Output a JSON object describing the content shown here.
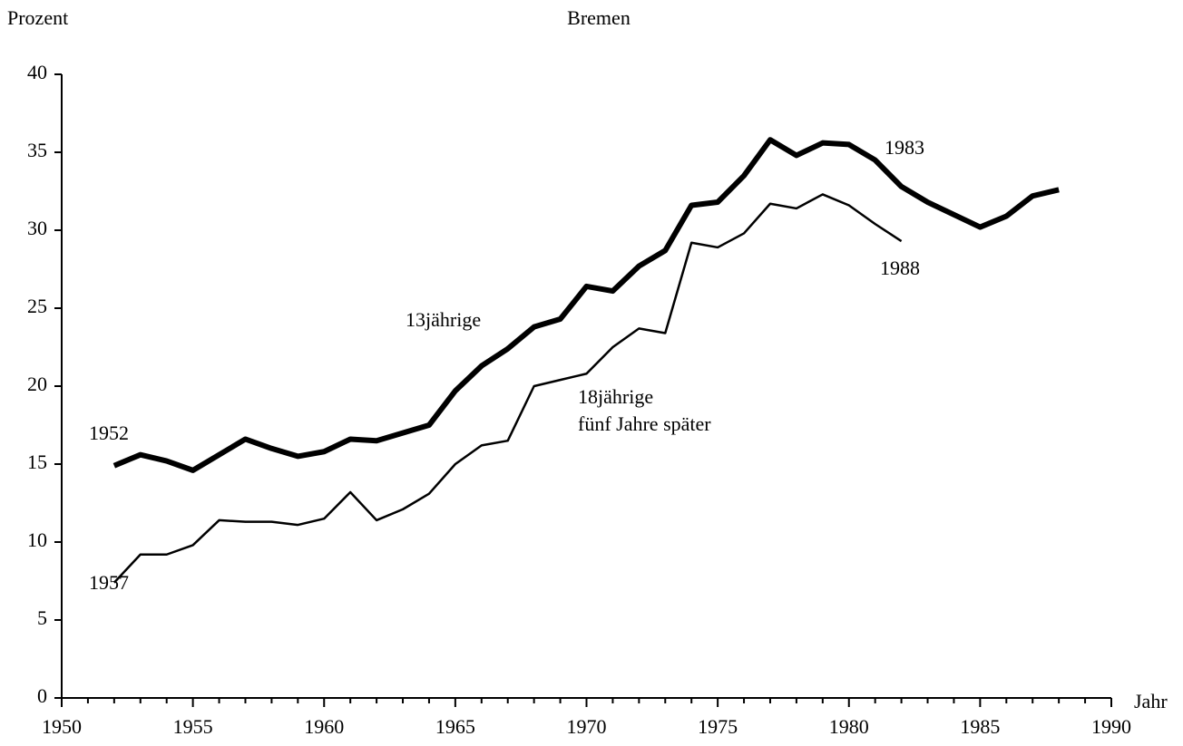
{
  "chart_data": {
    "type": "line",
    "title": "Bremen",
    "ylabel": "Prozent",
    "xlabel": "Jahr",
    "xlim": [
      1950,
      1990
    ],
    "xticks": [
      1950,
      1955,
      1960,
      1965,
      1970,
      1975,
      1980,
      1985,
      1990
    ],
    "xminorticks": [
      1951,
      1952,
      1953,
      1954,
      1956,
      1957,
      1958,
      1959,
      1961,
      1962,
      1963,
      1964,
      1966,
      1967,
      1968,
      1969,
      1971,
      1972,
      1973,
      1974,
      1976,
      1977,
      1978,
      1979,
      1981,
      1982,
      1983,
      1984,
      1986,
      1987,
      1988,
      1989
    ],
    "ylim": [
      0,
      40
    ],
    "yticks": [
      0,
      5,
      10,
      15,
      20,
      25,
      30,
      35,
      40
    ],
    "grid": false,
    "series": [
      {
        "name": "13jährige",
        "color": "#000000",
        "width": 6,
        "x": [
          1952,
          1953,
          1954,
          1955,
          1956,
          1957,
          1958,
          1959,
          1960,
          1961,
          1962,
          1963,
          1964,
          1965,
          1966,
          1967,
          1968,
          1969,
          1970,
          1971,
          1972,
          1973,
          1974,
          1975,
          1976,
          1977,
          1978,
          1979,
          1980,
          1981,
          1982,
          1983,
          1984,
          1985,
          1986,
          1987,
          1988
        ],
        "values": [
          14.9,
          15.6,
          15.2,
          14.6,
          15.6,
          16.6,
          16.0,
          15.5,
          15.8,
          16.6,
          16.5,
          17.0,
          17.5,
          19.7,
          21.3,
          22.4,
          23.8,
          24.3,
          26.4,
          26.1,
          27.7,
          28.7,
          31.6,
          31.8,
          33.5,
          35.8,
          34.8,
          35.6,
          35.5,
          34.5,
          32.8,
          31.8,
          31.0,
          30.2,
          30.9,
          32.2,
          32.6
        ]
      },
      {
        "name": "18jährige",
        "color": "#000000",
        "width": 2.5,
        "x": [
          1952,
          1953,
          1954,
          1955,
          1956,
          1957,
          1958,
          1959,
          1960,
          1961,
          1962,
          1963,
          1964,
          1965,
          1966,
          1967,
          1968,
          1969,
          1970,
          1971,
          1972,
          1973,
          1974,
          1975,
          1976,
          1977,
          1978,
          1979,
          1980,
          1981,
          1982
        ],
        "values": [
          7.4,
          9.2,
          9.2,
          9.8,
          11.4,
          11.3,
          11.3,
          11.1,
          11.5,
          13.2,
          11.4,
          12.1,
          13.1,
          15.0,
          16.2,
          16.5,
          20.0,
          20.4,
          20.8,
          22.5,
          23.7,
          23.4,
          29.2,
          28.9,
          29.8,
          31.7,
          31.4,
          32.3,
          31.6,
          30.4,
          29.3
        ]
      }
    ],
    "annotations": [
      "1952",
      "1957",
      "1983",
      "1988",
      "fünf Jahre später"
    ]
  }
}
